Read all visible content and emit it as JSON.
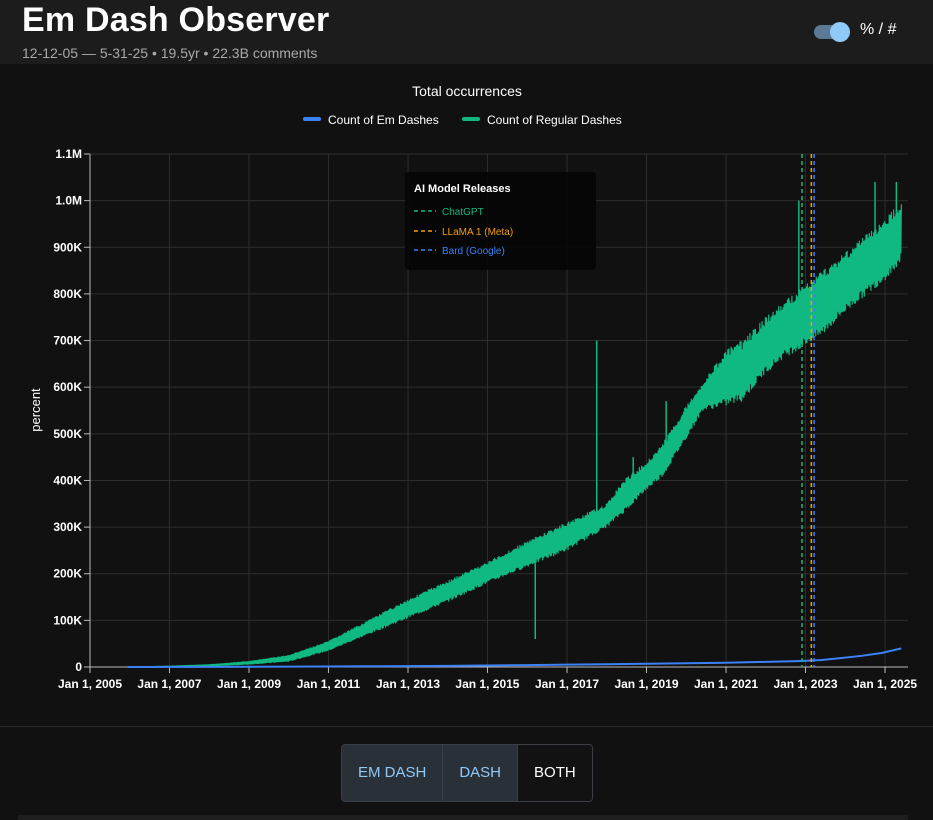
{
  "app": {
    "title": "Em Dash Observer",
    "subtitle": "12-12-05 — 5-31-25 • 19.5yr • 22.3B comments",
    "toggle_label": "% / #"
  },
  "buttons": [
    {
      "label": "EM DASH",
      "active": false
    },
    {
      "label": "DASH",
      "active": false
    },
    {
      "label": "BOTH",
      "active": true
    }
  ],
  "colors": {
    "background": "#111111",
    "em_dash": "#3b82f6",
    "regular_dash": "#10b981",
    "chatgpt": "#10b981",
    "llama": "#f59e0b",
    "bard": "#3b82f6",
    "toggle_accent": "#90caf9"
  },
  "chart_data": {
    "type": "line",
    "title": "Total occurrences",
    "xlabel": "",
    "ylabel": "percent",
    "ylim": [
      0,
      1100000
    ],
    "grid": true,
    "legend_position": "top-center",
    "y_ticks": [
      "0",
      "100K",
      "200K",
      "300K",
      "400K",
      "500K",
      "600K",
      "700K",
      "800K",
      "900K",
      "1.0M",
      "1.1M"
    ],
    "x_ticks": [
      "Jan 1, 2005",
      "Jan 1, 2007",
      "Jan 1, 2009",
      "Jan 1, 2011",
      "Jan 1, 2013",
      "Jan 1, 2015",
      "Jan 1, 2017",
      "Jan 1, 2019",
      "Jan 1, 2021",
      "Jan 1, 2023",
      "Jan 1, 2025"
    ],
    "series": [
      {
        "name": "Count of Em Dashes",
        "color": "#3b82f6",
        "points": [
          [
            "2005-12-12",
            0
          ],
          [
            "2008-01-01",
            200
          ],
          [
            "2010-01-01",
            800
          ],
          [
            "2012-01-01",
            1500
          ],
          [
            "2014-01-01",
            2500
          ],
          [
            "2016-01-01",
            4000
          ],
          [
            "2017-01-01",
            5000
          ],
          [
            "2018-01-01",
            6000
          ],
          [
            "2019-01-01",
            7000
          ],
          [
            "2020-01-01",
            8000
          ],
          [
            "2021-01-01",
            9000
          ],
          [
            "2022-01-01",
            11000
          ],
          [
            "2022-12-01",
            13000
          ],
          [
            "2023-06-01",
            15000
          ],
          [
            "2024-01-01",
            20000
          ],
          [
            "2024-06-01",
            24000
          ],
          [
            "2024-12-01",
            30000
          ],
          [
            "2025-05-31",
            40000
          ]
        ]
      },
      {
        "name": "Count of Regular Dashes",
        "color": "#10b981",
        "band": [
          [
            "2005-12-12",
            0,
            0
          ],
          [
            "2007-01-01",
            500,
            2000
          ],
          [
            "2008-01-01",
            2000,
            5000
          ],
          [
            "2009-01-01",
            6000,
            12000
          ],
          [
            "2010-01-01",
            12000,
            25000
          ],
          [
            "2011-01-01",
            35000,
            55000
          ],
          [
            "2012-01-01",
            70000,
            100000
          ],
          [
            "2013-01-01",
            105000,
            145000
          ],
          [
            "2014-01-01",
            140000,
            185000
          ],
          [
            "2015-01-01",
            180000,
            225000
          ],
          [
            "2016-01-01",
            215000,
            270000
          ],
          [
            "2017-01-01",
            250000,
            310000
          ],
          [
            "2018-01-01",
            300000,
            350000
          ],
          [
            "2018-06-01",
            330000,
            400000
          ],
          [
            "2019-01-01",
            380000,
            440000
          ],
          [
            "2019-06-01",
            410000,
            480000
          ],
          [
            "2020-01-01",
            490000,
            560000
          ],
          [
            "2020-06-01",
            550000,
            610000
          ],
          [
            "2021-01-01",
            560000,
            680000
          ],
          [
            "2021-06-01",
            570000,
            700000
          ],
          [
            "2022-01-01",
            630000,
            750000
          ],
          [
            "2022-06-01",
            660000,
            780000
          ],
          [
            "2023-01-01",
            690000,
            820000
          ],
          [
            "2023-06-01",
            710000,
            850000
          ],
          [
            "2024-01-01",
            760000,
            890000
          ],
          [
            "2024-06-01",
            790000,
            920000
          ],
          [
            "2025-01-01",
            830000,
            960000
          ],
          [
            "2025-05-31",
            870000,
            1000000
          ]
        ],
        "spikes": [
          [
            "2016-03-15",
            60000
          ],
          [
            "2017-10-01",
            700000
          ],
          [
            "2018-09-01",
            450000
          ],
          [
            "2019-07-01",
            570000
          ],
          [
            "2022-11-01",
            1000000
          ],
          [
            "2024-10-01",
            1040000
          ],
          [
            "2025-04-15",
            1040000
          ]
        ]
      }
    ],
    "annotations": {
      "title": "AI Model Releases",
      "items": [
        {
          "label": "ChatGPT",
          "date": "2022-11-30",
          "color": "#10b981"
        },
        {
          "label": "LLaMA 1 (Meta)",
          "date": "2023-02-24",
          "color": "#f59e0b"
        },
        {
          "label": "Bard (Google)",
          "date": "2023-03-21",
          "color": "#3b82f6"
        }
      ]
    }
  }
}
